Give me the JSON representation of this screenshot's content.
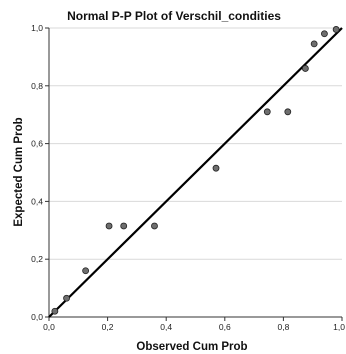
{
  "chart_data": {
    "type": "scatter",
    "title": "Normal P-P Plot of Verschil_condities",
    "xlabel": "Observed Cum Prob",
    "ylabel": "Expected Cum Prob",
    "xlim": [
      0,
      1
    ],
    "ylim": [
      0,
      1
    ],
    "x_ticks": [
      "0,0",
      "0,2",
      "0,4",
      "0,6",
      "0,8",
      "1,0"
    ],
    "y_ticks": [
      "0,0",
      "0,2",
      "0,4",
      "0,6",
      "0,8",
      "1,0"
    ],
    "grid": "horizontal",
    "reference_line": {
      "from": [
        0,
        0
      ],
      "to": [
        1,
        1
      ]
    },
    "colors": {
      "point_fill": "#6e6e6e",
      "point_stroke": "#222222",
      "line": "#000000",
      "grid": "#d9d9d9"
    },
    "points": [
      {
        "x": 0.02,
        "y": 0.02
      },
      {
        "x": 0.06,
        "y": 0.065
      },
      {
        "x": 0.125,
        "y": 0.16
      },
      {
        "x": 0.205,
        "y": 0.315
      },
      {
        "x": 0.255,
        "y": 0.315
      },
      {
        "x": 0.36,
        "y": 0.315
      },
      {
        "x": 0.57,
        "y": 0.515
      },
      {
        "x": 0.745,
        "y": 0.71
      },
      {
        "x": 0.815,
        "y": 0.71
      },
      {
        "x": 0.875,
        "y": 0.86
      },
      {
        "x": 0.905,
        "y": 0.945
      },
      {
        "x": 0.94,
        "y": 0.98
      },
      {
        "x": 0.98,
        "y": 0.995
      }
    ]
  }
}
